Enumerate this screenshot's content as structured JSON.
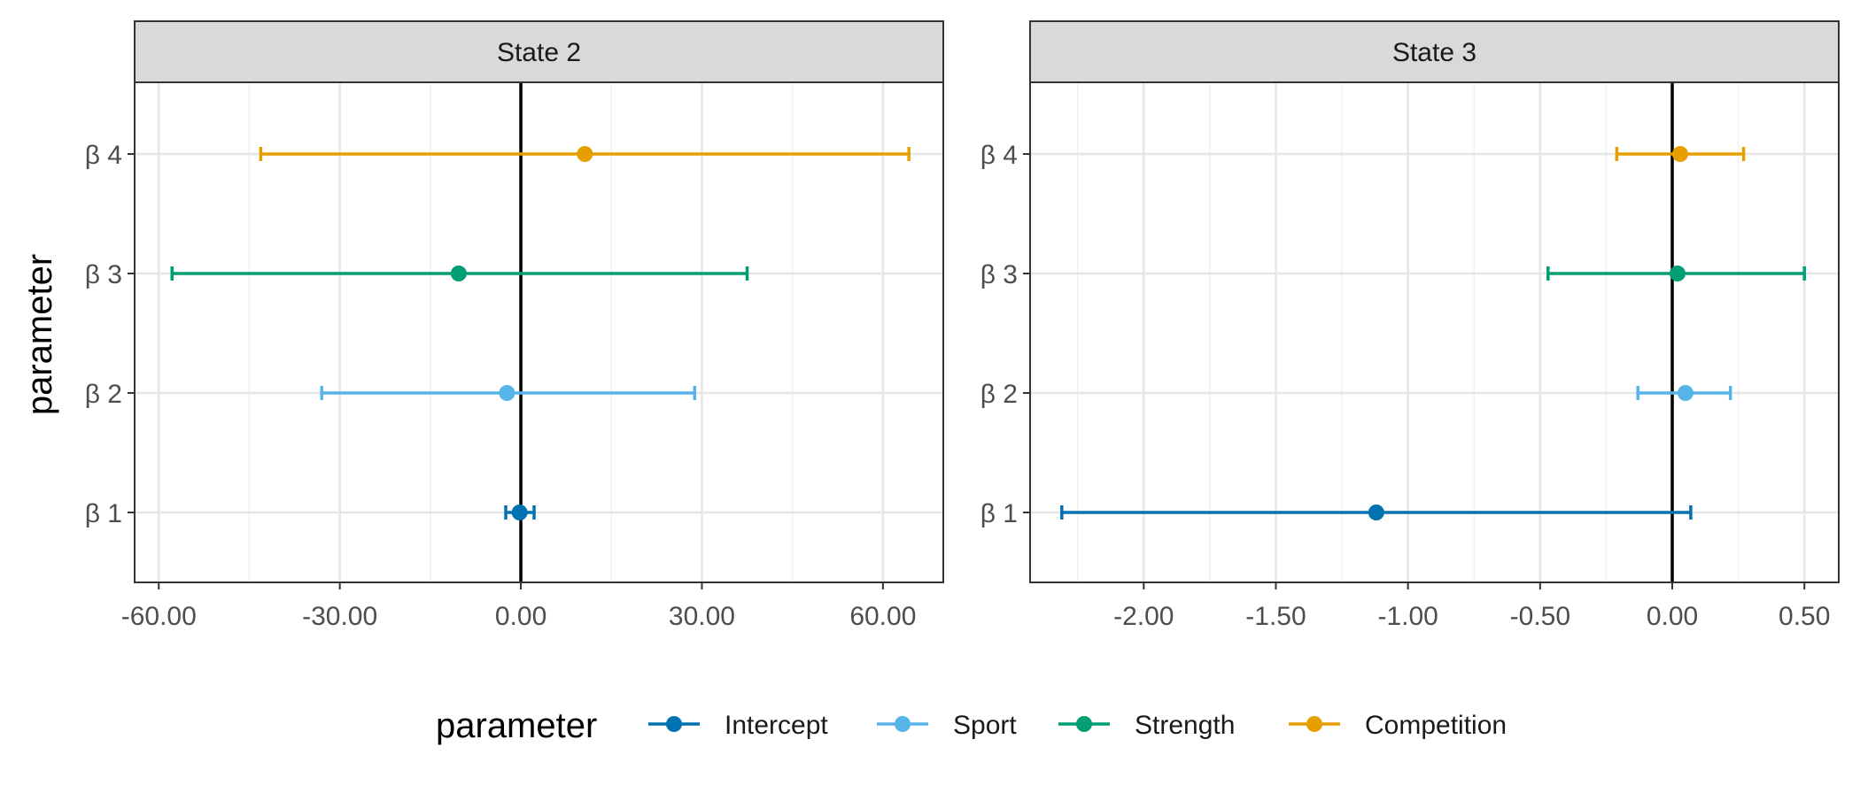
{
  "figure": {
    "y_axis_title": "parameter",
    "legend_title": "parameter"
  },
  "chart_data": [
    {
      "type": "forest",
      "panel_title": "State 2",
      "categories": [
        "β 1",
        "β 2",
        "β 3",
        "β 4"
      ],
      "xlim": [
        -64,
        70
      ],
      "xticks": [
        -60,
        -30,
        0,
        30,
        60
      ],
      "xtick_labels": [
        "-60.00",
        "-30.00",
        "0.00",
        "30.00",
        "60.00"
      ],
      "reference_line": 0,
      "grid": true,
      "points": [
        {
          "category": "β 1",
          "series": "Intercept",
          "estimate": -0.2,
          "lower": -2.5,
          "upper": 2.2
        },
        {
          "category": "β 2",
          "series": "Sport",
          "estimate": -2.3,
          "lower": -33.0,
          "upper": 28.8
        },
        {
          "category": "β 3",
          "series": "Strength",
          "estimate": -10.3,
          "lower": -57.8,
          "upper": 37.5
        },
        {
          "category": "β 4",
          "series": "Competition",
          "estimate": 10.6,
          "lower": -43.1,
          "upper": 64.3
        }
      ]
    },
    {
      "type": "forest",
      "panel_title": "State 3",
      "categories": [
        "β 1",
        "β 2",
        "β 3",
        "β 4"
      ],
      "xlim": [
        -2.43,
        0.63
      ],
      "xticks": [
        -2.0,
        -1.5,
        -1.0,
        -0.5,
        0.0,
        0.5
      ],
      "xtick_labels": [
        "-2.00",
        "-1.50",
        "-1.00",
        "-0.50",
        "0.00",
        "0.50"
      ],
      "reference_line": 0,
      "grid": true,
      "points": [
        {
          "category": "β 1",
          "series": "Intercept",
          "estimate": -1.12,
          "lower": -2.31,
          "upper": 0.07
        },
        {
          "category": "β 2",
          "series": "Sport",
          "estimate": 0.05,
          "lower": -0.13,
          "upper": 0.22
        },
        {
          "category": "β 3",
          "series": "Strength",
          "estimate": 0.02,
          "lower": -0.47,
          "upper": 0.5
        },
        {
          "category": "β 4",
          "series": "Competition",
          "estimate": 0.03,
          "lower": -0.21,
          "upper": 0.27
        }
      ]
    }
  ],
  "legend": {
    "position": "bottom",
    "entries": [
      {
        "name": "Intercept",
        "color": "#0072B2"
      },
      {
        "name": "Sport",
        "color": "#56B4E9"
      },
      {
        "name": "Strength",
        "color": "#009E73"
      },
      {
        "name": "Competition",
        "color": "#E69F00"
      }
    ]
  }
}
